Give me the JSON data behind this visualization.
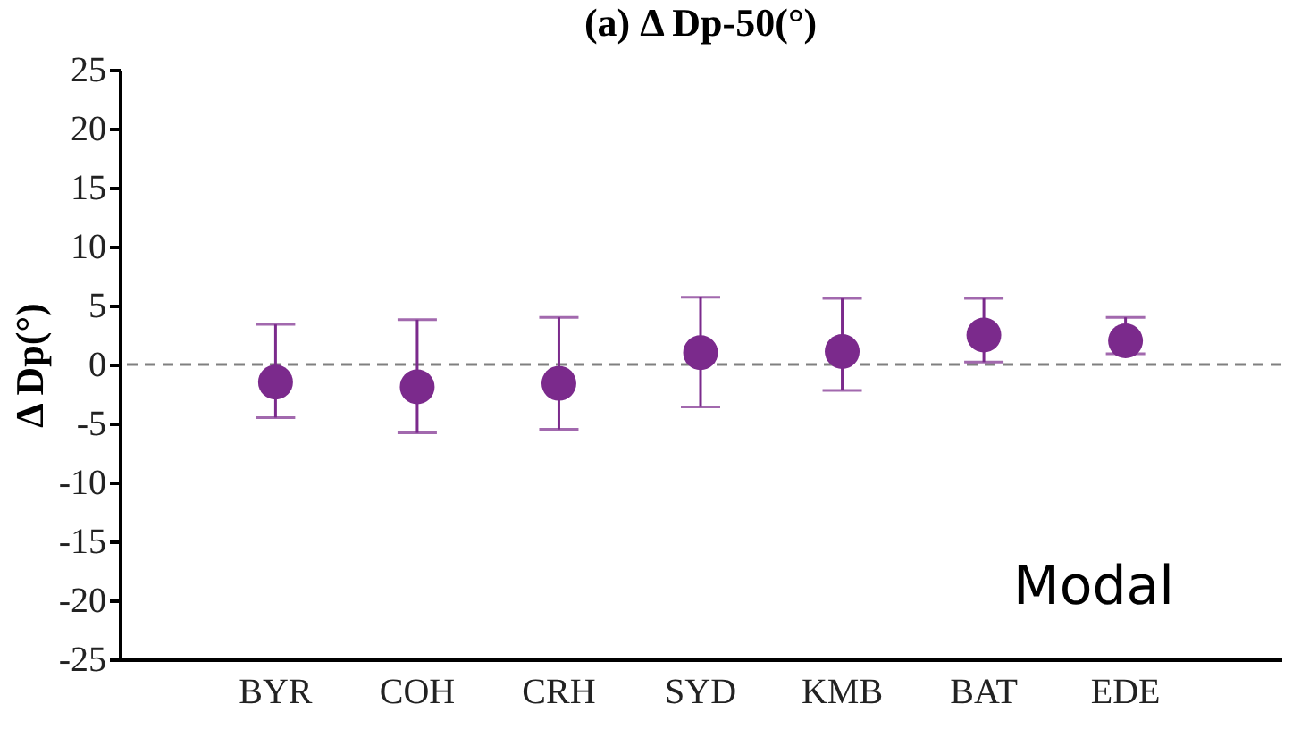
{
  "chart_data": {
    "type": "scatter",
    "title": "(a) Δ Dp-50(°)",
    "ylabel": "Δ Dp(°)",
    "categories": [
      "BYR",
      "COH",
      "CRH",
      "SYD",
      "KMB",
      "BAT",
      "EDE"
    ],
    "series": [
      {
        "color": "#7b2a8c",
        "values": [
          -1.5,
          -1.9,
          -1.6,
          1.0,
          1.1,
          2.5,
          2.0
        ],
        "errors": [
          [
            -4.5,
            3.4
          ],
          [
            -5.8,
            3.8
          ],
          [
            -5.5,
            4.0
          ],
          [
            -3.6,
            5.7
          ],
          [
            -2.2,
            5.6
          ],
          [
            0.2,
            5.6
          ],
          [
            0.9,
            4.0
          ]
        ]
      }
    ],
    "ylim": [
      -25,
      25
    ],
    "yticks": [
      -25,
      -20,
      -15,
      -10,
      -5,
      0,
      5,
      10,
      15,
      20,
      25
    ],
    "ref_lines": [
      {
        "axis": "y",
        "value": 0,
        "color": "#808080",
        "line_style": "dashed"
      }
    ],
    "annotations": [
      "Modal"
    ],
    "marker": "circle",
    "grid": false
  }
}
